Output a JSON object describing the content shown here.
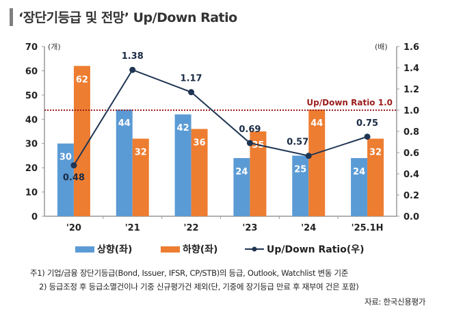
{
  "header": {
    "title": "‘장단기등급 및 전망’ Up/Down Ratio"
  },
  "chart_data": {
    "type": "bar",
    "title": "‘장단기등급 및 전망’ Up/Down Ratio",
    "categories": [
      "'20",
      "'21",
      "'22",
      "'23",
      "'24",
      "'25.1H"
    ],
    "series": [
      {
        "name": "상향(좌)",
        "type": "bar",
        "axis": "left",
        "color": "#5b9bd5",
        "values": [
          30,
          44,
          42,
          24,
          25,
          24
        ]
      },
      {
        "name": "하향(좌)",
        "type": "bar",
        "axis": "left",
        "color": "#ed7d31",
        "values": [
          62,
          32,
          36,
          35,
          44,
          32
        ]
      },
      {
        "name": "Up/Down Ratio(우)",
        "type": "line",
        "axis": "right",
        "color": "#1f3553",
        "values": [
          0.48,
          1.38,
          1.17,
          0.69,
          0.57,
          0.75
        ]
      }
    ],
    "left_axis": {
      "unit": "(개)",
      "ylim": [
        0,
        70
      ],
      "ticks": [
        "0",
        "10",
        "20",
        "30",
        "40",
        "50",
        "60",
        "70"
      ]
    },
    "right_axis": {
      "unit": "(배)",
      "ylim": [
        0,
        1.6
      ],
      "ticks": [
        "0.0",
        "0.2",
        "0.4",
        "0.6",
        "0.8",
        "1.0",
        "1.2",
        "1.4",
        "1.6"
      ]
    },
    "reference_line": {
      "value": 1.0,
      "axis": "right",
      "label": "Up/Down Ratio 1.0",
      "color": "#9b1c1c",
      "style": "dotted"
    },
    "legend_position": "bottom",
    "grid": false
  },
  "notes": [
    "주1) 기업/금융 장단기등급(Bond, Issuer, IFSR, CP/STB)의 등급, Outlook, Watchlist 변동 기준",
    "2) 등급조정 후 등급소멸건이나 기중 신규평가건 제외(단, 기중에 장기등급 만료 후 재부여 건은 포함)"
  ],
  "source": "자료: 한국신용평가"
}
